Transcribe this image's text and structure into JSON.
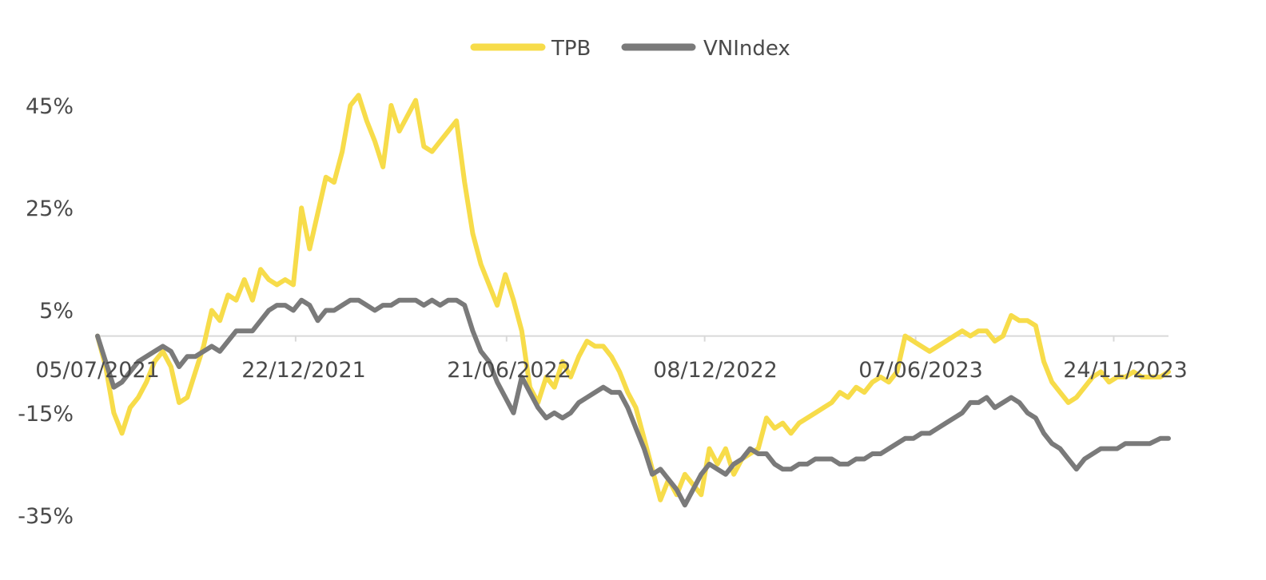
{
  "chart_data": {
    "type": "line",
    "title": "",
    "xlabel": "",
    "ylabel": "",
    "ylim": [
      -35,
      55
    ],
    "yticks": [
      "45%",
      "25%",
      "5%",
      "-15%",
      "-35%"
    ],
    "ytick_values": [
      45,
      25,
      5,
      -15,
      -35
    ],
    "xticks": [
      "05/07/2021",
      "22/12/2021",
      "21/06/2022",
      "08/12/2022",
      "07/06/2023",
      "24/11/2023"
    ],
    "xtick_values": [
      "2021-07-05",
      "2021-12-22",
      "2022-06-21",
      "2022-12-08",
      "2023-06-07",
      "2023-11-24"
    ],
    "x_range": [
      "2021-07-05",
      "2024-01-10"
    ],
    "grid": false,
    "zero_line": true,
    "legend_position": "top-center",
    "series": [
      {
        "name": "TPB",
        "color": "#f7dc4a",
        "points": [
          [
            "2021-07-05",
            0
          ],
          [
            "2021-07-12",
            -6
          ],
          [
            "2021-07-19",
            -15
          ],
          [
            "2021-07-26",
            -19
          ],
          [
            "2021-08-02",
            -14
          ],
          [
            "2021-08-09",
            -12
          ],
          [
            "2021-08-16",
            -9
          ],
          [
            "2021-08-23",
            -5
          ],
          [
            "2021-08-30",
            -3
          ],
          [
            "2021-09-06",
            -6
          ],
          [
            "2021-09-13",
            -13
          ],
          [
            "2021-09-20",
            -12
          ],
          [
            "2021-09-27",
            -7
          ],
          [
            "2021-10-04",
            -2
          ],
          [
            "2021-10-11",
            5
          ],
          [
            "2021-10-18",
            3
          ],
          [
            "2021-10-25",
            8
          ],
          [
            "2021-11-01",
            7
          ],
          [
            "2021-11-08",
            11
          ],
          [
            "2021-11-15",
            7
          ],
          [
            "2021-11-22",
            13
          ],
          [
            "2021-11-29",
            11
          ],
          [
            "2021-12-06",
            10
          ],
          [
            "2021-12-13",
            11
          ],
          [
            "2021-12-20",
            10
          ],
          [
            "2021-12-27",
            25
          ],
          [
            "2022-01-03",
            17
          ],
          [
            "2022-01-10",
            24
          ],
          [
            "2022-01-17",
            31
          ],
          [
            "2022-01-24",
            30
          ],
          [
            "2022-01-31",
            36
          ],
          [
            "2022-02-07",
            45
          ],
          [
            "2022-02-14",
            47
          ],
          [
            "2022-02-21",
            42
          ],
          [
            "2022-02-28",
            38
          ],
          [
            "2022-03-07",
            33
          ],
          [
            "2022-03-14",
            45
          ],
          [
            "2022-03-21",
            40
          ],
          [
            "2022-03-28",
            43
          ],
          [
            "2022-04-04",
            46
          ],
          [
            "2022-04-11",
            37
          ],
          [
            "2022-04-18",
            36
          ],
          [
            "2022-04-25",
            38
          ],
          [
            "2022-05-02",
            40
          ],
          [
            "2022-05-09",
            42
          ],
          [
            "2022-05-16",
            30
          ],
          [
            "2022-05-23",
            20
          ],
          [
            "2022-05-30",
            14
          ],
          [
            "2022-06-06",
            10
          ],
          [
            "2022-06-13",
            6
          ],
          [
            "2022-06-20",
            12
          ],
          [
            "2022-06-27",
            7
          ],
          [
            "2022-07-04",
            1
          ],
          [
            "2022-07-11",
            -10
          ],
          [
            "2022-07-18",
            -13
          ],
          [
            "2022-07-25",
            -8
          ],
          [
            "2022-08-01",
            -10
          ],
          [
            "2022-08-08",
            -5
          ],
          [
            "2022-08-15",
            -8
          ],
          [
            "2022-08-22",
            -4
          ],
          [
            "2022-08-29",
            -1
          ],
          [
            "2022-09-05",
            -2
          ],
          [
            "2022-09-12",
            -2
          ],
          [
            "2022-09-19",
            -4
          ],
          [
            "2022-09-26",
            -7
          ],
          [
            "2022-10-03",
            -11
          ],
          [
            "2022-10-10",
            -14
          ],
          [
            "2022-10-17",
            -20
          ],
          [
            "2022-10-24",
            -26
          ],
          [
            "2022-10-31",
            -32
          ],
          [
            "2022-11-07",
            -28
          ],
          [
            "2022-11-14",
            -31
          ],
          [
            "2022-11-21",
            -27
          ],
          [
            "2022-12-05",
            -31
          ],
          [
            "2022-12-12",
            -22
          ],
          [
            "2022-12-19",
            -25
          ],
          [
            "2022-12-26",
            -22
          ],
          [
            "2023-01-02",
            -27
          ],
          [
            "2023-01-09",
            -24
          ],
          [
            "2023-01-16",
            -23
          ],
          [
            "2023-01-23",
            -22
          ],
          [
            "2023-01-30",
            -16
          ],
          [
            "2023-02-06",
            -18
          ],
          [
            "2023-02-13",
            -17
          ],
          [
            "2023-02-20",
            -19
          ],
          [
            "2023-02-27",
            -17
          ],
          [
            "2023-03-06",
            -16
          ],
          [
            "2023-03-13",
            -15
          ],
          [
            "2023-03-20",
            -14
          ],
          [
            "2023-03-27",
            -13
          ],
          [
            "2023-04-03",
            -11
          ],
          [
            "2023-04-10",
            -12
          ],
          [
            "2023-04-17",
            -10
          ],
          [
            "2023-04-24",
            -11
          ],
          [
            "2023-05-01",
            -9
          ],
          [
            "2023-05-08",
            -8
          ],
          [
            "2023-05-15",
            -9
          ],
          [
            "2023-05-22",
            -7
          ],
          [
            "2023-05-29",
            0
          ],
          [
            "2023-06-05",
            -1
          ],
          [
            "2023-06-12",
            -2
          ],
          [
            "2023-06-19",
            -3
          ],
          [
            "2023-06-26",
            -2
          ],
          [
            "2023-07-03",
            -1
          ],
          [
            "2023-07-10",
            0
          ],
          [
            "2023-07-17",
            1
          ],
          [
            "2023-07-24",
            0
          ],
          [
            "2023-07-31",
            1
          ],
          [
            "2023-08-07",
            1
          ],
          [
            "2023-08-14",
            -1
          ],
          [
            "2023-08-21",
            0
          ],
          [
            "2023-08-28",
            4
          ],
          [
            "2023-09-04",
            3
          ],
          [
            "2023-09-11",
            3
          ],
          [
            "2023-09-18",
            2
          ],
          [
            "2023-09-25",
            -5
          ],
          [
            "2023-10-02",
            -9
          ],
          [
            "2023-10-09",
            -11
          ],
          [
            "2023-10-16",
            -13
          ],
          [
            "2023-10-23",
            -12
          ],
          [
            "2023-10-30",
            -10
          ],
          [
            "2023-11-06",
            -8
          ],
          [
            "2023-11-13",
            -7
          ],
          [
            "2023-11-20",
            -9
          ],
          [
            "2023-11-27",
            -8
          ],
          [
            "2023-12-04",
            -8
          ],
          [
            "2023-12-11",
            -7
          ],
          [
            "2023-12-18",
            -8
          ],
          [
            "2023-12-25",
            -8
          ],
          [
            "2024-01-03",
            -8
          ],
          [
            "2024-01-10",
            -7
          ]
        ]
      },
      {
        "name": "VNIndex",
        "color": "#7a7a7a",
        "points": [
          [
            "2021-07-05",
            0
          ],
          [
            "2021-07-12",
            -5
          ],
          [
            "2021-07-19",
            -10
          ],
          [
            "2021-07-26",
            -9
          ],
          [
            "2021-08-02",
            -7
          ],
          [
            "2021-08-09",
            -5
          ],
          [
            "2021-08-16",
            -4
          ],
          [
            "2021-08-23",
            -3
          ],
          [
            "2021-08-30",
            -2
          ],
          [
            "2021-09-06",
            -3
          ],
          [
            "2021-09-13",
            -6
          ],
          [
            "2021-09-20",
            -4
          ],
          [
            "2021-09-27",
            -4
          ],
          [
            "2021-10-04",
            -3
          ],
          [
            "2021-10-11",
            -2
          ],
          [
            "2021-10-18",
            -3
          ],
          [
            "2021-10-25",
            -1
          ],
          [
            "2021-11-01",
            1
          ],
          [
            "2021-11-08",
            1
          ],
          [
            "2021-11-15",
            1
          ],
          [
            "2021-11-22",
            3
          ],
          [
            "2021-11-29",
            5
          ],
          [
            "2021-12-06",
            6
          ],
          [
            "2021-12-13",
            6
          ],
          [
            "2021-12-20",
            5
          ],
          [
            "2021-12-27",
            7
          ],
          [
            "2022-01-03",
            6
          ],
          [
            "2022-01-10",
            3
          ],
          [
            "2022-01-17",
            5
          ],
          [
            "2022-01-24",
            5
          ],
          [
            "2022-01-31",
            6
          ],
          [
            "2022-02-07",
            7
          ],
          [
            "2022-02-14",
            7
          ],
          [
            "2022-02-21",
            6
          ],
          [
            "2022-02-28",
            5
          ],
          [
            "2022-03-07",
            6
          ],
          [
            "2022-03-14",
            6
          ],
          [
            "2022-03-21",
            7
          ],
          [
            "2022-03-28",
            7
          ],
          [
            "2022-04-04",
            7
          ],
          [
            "2022-04-11",
            6
          ],
          [
            "2022-04-18",
            7
          ],
          [
            "2022-04-25",
            6
          ],
          [
            "2022-05-02",
            7
          ],
          [
            "2022-05-09",
            7
          ],
          [
            "2022-05-16",
            6
          ],
          [
            "2022-05-23",
            1
          ],
          [
            "2022-05-30",
            -3
          ],
          [
            "2022-06-06",
            -5
          ],
          [
            "2022-06-13",
            -9
          ],
          [
            "2022-06-20",
            -12
          ],
          [
            "2022-06-27",
            -15
          ],
          [
            "2022-07-04",
            -8
          ],
          [
            "2022-07-11",
            -11
          ],
          [
            "2022-07-18",
            -14
          ],
          [
            "2022-07-25",
            -16
          ],
          [
            "2022-08-01",
            -15
          ],
          [
            "2022-08-08",
            -16
          ],
          [
            "2022-08-15",
            -15
          ],
          [
            "2022-08-22",
            -13
          ],
          [
            "2022-08-29",
            -12
          ],
          [
            "2022-09-05",
            -11
          ],
          [
            "2022-09-12",
            -10
          ],
          [
            "2022-09-19",
            -11
          ],
          [
            "2022-09-26",
            -11
          ],
          [
            "2022-10-03",
            -14
          ],
          [
            "2022-10-10",
            -18
          ],
          [
            "2022-10-17",
            -22
          ],
          [
            "2022-10-24",
            -27
          ],
          [
            "2022-10-31",
            -26
          ],
          [
            "2022-11-07",
            -28
          ],
          [
            "2022-11-14",
            -30
          ],
          [
            "2022-11-21",
            -33
          ],
          [
            "2022-12-05",
            -27
          ],
          [
            "2022-12-12",
            -25
          ],
          [
            "2022-12-19",
            -26
          ],
          [
            "2022-12-26",
            -27
          ],
          [
            "2023-01-02",
            -25
          ],
          [
            "2023-01-09",
            -24
          ],
          [
            "2023-01-16",
            -22
          ],
          [
            "2023-01-23",
            -23
          ],
          [
            "2023-01-30",
            -23
          ],
          [
            "2023-02-06",
            -25
          ],
          [
            "2023-02-13",
            -26
          ],
          [
            "2023-02-20",
            -26
          ],
          [
            "2023-02-27",
            -25
          ],
          [
            "2023-03-06",
            -25
          ],
          [
            "2023-03-13",
            -24
          ],
          [
            "2023-03-20",
            -24
          ],
          [
            "2023-03-27",
            -24
          ],
          [
            "2023-04-03",
            -25
          ],
          [
            "2023-04-10",
            -25
          ],
          [
            "2023-04-17",
            -24
          ],
          [
            "2023-04-24",
            -24
          ],
          [
            "2023-05-01",
            -23
          ],
          [
            "2023-05-08",
            -23
          ],
          [
            "2023-05-15",
            -22
          ],
          [
            "2023-05-22",
            -21
          ],
          [
            "2023-05-29",
            -20
          ],
          [
            "2023-06-05",
            -20
          ],
          [
            "2023-06-12",
            -19
          ],
          [
            "2023-06-19",
            -19
          ],
          [
            "2023-06-26",
            -18
          ],
          [
            "2023-07-03",
            -17
          ],
          [
            "2023-07-10",
            -16
          ],
          [
            "2023-07-17",
            -15
          ],
          [
            "2023-07-24",
            -13
          ],
          [
            "2023-07-31",
            -13
          ],
          [
            "2023-08-07",
            -12
          ],
          [
            "2023-08-14",
            -14
          ],
          [
            "2023-08-21",
            -13
          ],
          [
            "2023-08-28",
            -12
          ],
          [
            "2023-09-04",
            -13
          ],
          [
            "2023-09-11",
            -15
          ],
          [
            "2023-09-18",
            -16
          ],
          [
            "2023-09-25",
            -19
          ],
          [
            "2023-10-02",
            -21
          ],
          [
            "2023-10-09",
            -22
          ],
          [
            "2023-10-16",
            -24
          ],
          [
            "2023-10-23",
            -26
          ],
          [
            "2023-10-30",
            -24
          ],
          [
            "2023-11-06",
            -23
          ],
          [
            "2023-11-13",
            -22
          ],
          [
            "2023-11-20",
            -22
          ],
          [
            "2023-11-27",
            -22
          ],
          [
            "2023-12-04",
            -21
          ],
          [
            "2023-12-11",
            -21
          ],
          [
            "2023-12-18",
            -21
          ],
          [
            "2023-12-25",
            -21
          ],
          [
            "2024-01-03",
            -20
          ],
          [
            "2024-01-10",
            -20
          ]
        ]
      }
    ]
  }
}
